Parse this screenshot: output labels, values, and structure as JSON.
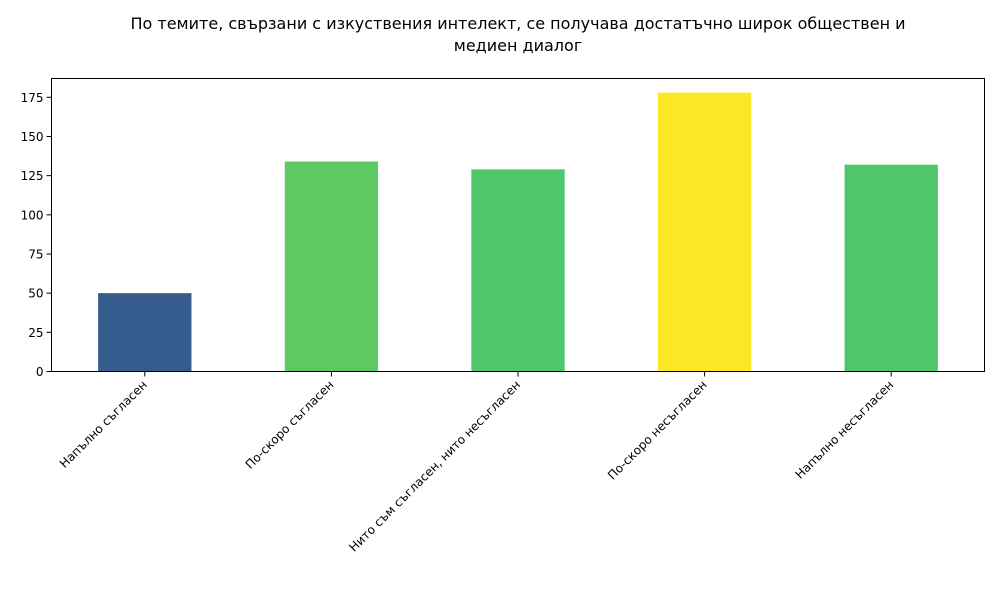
{
  "chart_data": {
    "type": "bar",
    "title_lines": [
      "По темите, свързани с изкуствения интелект, се получава достатъчно широк обществен и",
      "медиен диалог"
    ],
    "xlabel": "",
    "ylabel": "",
    "categories": [
      "Напълно съгласен",
      "По-скоро съгласен",
      "Нито съм съгласен, нито несъгласен",
      "По-скоро несъгласен",
      "Напълно несъгласен"
    ],
    "values": [
      50,
      134,
      129,
      178,
      132
    ],
    "colors": [
      "#355c8d",
      "#5ec962",
      "#50c66b",
      "#fde725",
      "#50c66b"
    ],
    "ylim": [
      0,
      187
    ],
    "yticks": [
      0,
      25,
      50,
      75,
      100,
      125,
      150,
      175
    ],
    "grid": false,
    "legend": "none"
  }
}
